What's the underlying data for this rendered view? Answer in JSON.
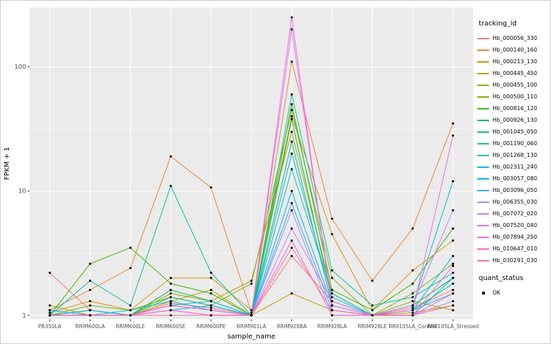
{
  "figure": {
    "bg": "#ffffff",
    "panel_bg": "#EBEBEB",
    "grid_color": "#FFFFFF",
    "tick_color": "#333333",
    "text_color": "#4D4D4D",
    "point_color": "#000000"
  },
  "chart_data": {
    "type": "line",
    "title": "",
    "xlabel": "sample_name",
    "ylabel": "FPKM + 1",
    "y_scale": "log10",
    "y_ticks": [
      1,
      10,
      100
    ],
    "y_minor_ticks": [
      3.1623,
      31.623
    ],
    "y_domain": [
      0.93,
      300
    ],
    "grid": true,
    "legend_position": "right",
    "categories": [
      "PB350LA",
      "RRIM600LA",
      "RRIM600LE",
      "RRIM600SE",
      "RRIM600PE",
      "RRIM901LA",
      "RRIM928BA",
      "RRIM928LA",
      "RRIM928LE",
      "RRII105LA_Control",
      "RRII105LA_Stressed"
    ],
    "series": [
      {
        "name": "Hb_000056_330",
        "color": "#F8766D",
        "values": [
          2.2,
          1.1,
          1.0,
          1.25,
          1.15,
          1.0,
          3.0,
          1.3,
          1.0,
          1.15,
          1.6
        ]
      },
      {
        "name": "Hb_000140_160",
        "color": "#EA8331",
        "values": [
          1.1,
          1.6,
          2.4,
          19.0,
          10.7,
          1.05,
          110.0,
          6.0,
          1.9,
          5.0,
          35.0
        ]
      },
      {
        "name": "Hb_000213_130",
        "color": "#D89000",
        "values": [
          1.05,
          1.3,
          1.1,
          2.0,
          2.0,
          1.1,
          40.0,
          4.5,
          1.1,
          2.3,
          4.0
        ]
      },
      {
        "name": "Hb_000445_450",
        "color": "#C09B00",
        "values": [
          1.2,
          1.0,
          1.0,
          1.3,
          1.6,
          1.0,
          1.5,
          1.1,
          1.0,
          1.05,
          1.2
        ]
      },
      {
        "name": "Hb_000455_100",
        "color": "#A3A500",
        "values": [
          1.0,
          1.1,
          1.0,
          1.5,
          1.3,
          1.9,
          30.0,
          1.5,
          1.0,
          1.3,
          1.1
        ]
      },
      {
        "name": "Hb_000500_110",
        "color": "#7CAE00",
        "values": [
          1.0,
          1.2,
          1.1,
          1.4,
          1.2,
          1.8,
          45.0,
          2.0,
          1.0,
          1.5,
          2.6
        ]
      },
      {
        "name": "Hb_000816_120",
        "color": "#39B600",
        "values": [
          1.0,
          2.6,
          3.5,
          1.8,
          1.5,
          1.0,
          50.0,
          1.6,
          1.1,
          1.8,
          5.0
        ]
      },
      {
        "name": "Hb_000926_130",
        "color": "#00BB4E",
        "values": [
          1.0,
          1.1,
          1.0,
          1.6,
          1.3,
          1.0,
          38.0,
          1.3,
          1.0,
          1.2,
          2.0
        ]
      },
      {
        "name": "Hb_001045_050",
        "color": "#00BF7D",
        "values": [
          1.0,
          1.0,
          1.0,
          1.4,
          1.2,
          1.0,
          25.0,
          1.2,
          1.0,
          1.1,
          1.8
        ]
      },
      {
        "name": "Hb_001190_060",
        "color": "#00C1A3",
        "values": [
          1.0,
          1.9,
          1.2,
          11.0,
          2.2,
          1.0,
          60.0,
          2.3,
          1.2,
          1.4,
          2.2
        ]
      },
      {
        "name": "Hb_001268_130",
        "color": "#00BFC4",
        "values": [
          1.0,
          1.0,
          1.1,
          1.3,
          1.1,
          1.0,
          15.0,
          1.5,
          1.0,
          1.2,
          12.0
        ]
      },
      {
        "name": "Hb_002311_240",
        "color": "#00BAE0",
        "values": [
          1.0,
          1.1,
          1.0,
          1.2,
          1.3,
          1.0,
          20.0,
          1.4,
          1.0,
          1.1,
          3.0
        ]
      },
      {
        "name": "Hb_003057_080",
        "color": "#00B0F6",
        "values": [
          1.1,
          1.0,
          1.0,
          1.1,
          1.2,
          1.0,
          10.0,
          1.2,
          1.0,
          1.0,
          2.0
        ]
      },
      {
        "name": "Hb_003096_050",
        "color": "#35A2FF",
        "values": [
          1.0,
          1.0,
          1.0,
          1.2,
          1.1,
          1.0,
          8.0,
          1.1,
          1.0,
          1.1,
          1.5
        ]
      },
      {
        "name": "Hb_006355_030",
        "color": "#9590FF",
        "values": [
          1.0,
          1.0,
          1.0,
          1.1,
          1.0,
          1.0,
          7.0,
          1.0,
          1.0,
          1.0,
          1.3
        ]
      },
      {
        "name": "Hb_007072_020",
        "color": "#C77CFF",
        "values": [
          1.0,
          1.0,
          1.0,
          1.2,
          1.1,
          1.0,
          5.0,
          1.3,
          1.0,
          1.2,
          7.0
        ]
      },
      {
        "name": "Hb_007520_040",
        "color": "#E76BF3",
        "values": [
          1.0,
          1.0,
          1.0,
          1.1,
          1.0,
          1.0,
          200.0,
          1.2,
          1.0,
          1.1,
          28.0
        ]
      },
      {
        "name": "Hb_007894_250",
        "color": "#FA62DB",
        "values": [
          1.0,
          1.0,
          1.0,
          1.2,
          1.1,
          1.0,
          250.0,
          1.1,
          1.0,
          1.0,
          2.5
        ]
      },
      {
        "name": "Hb_010647_010",
        "color": "#FF61CC",
        "values": [
          1.0,
          1.0,
          1.0,
          1.1,
          1.0,
          1.0,
          4.0,
          1.0,
          1.0,
          1.0,
          1.5
        ]
      },
      {
        "name": "Hb_030291_030",
        "color": "#FF6A98",
        "values": [
          1.0,
          1.0,
          1.0,
          1.0,
          1.0,
          1.0,
          3.5,
          1.1,
          1.0,
          1.0,
          1.2
        ]
      }
    ],
    "legend": {
      "color_title": "tracking_id",
      "shape_title": "quant_status",
      "shape_entries": [
        "OK"
      ]
    }
  }
}
